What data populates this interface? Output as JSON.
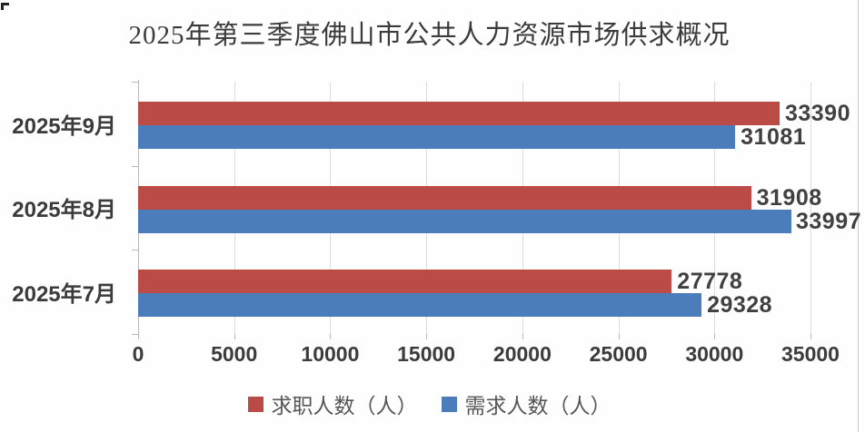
{
  "chart_data": {
    "type": "bar",
    "orientation": "horizontal",
    "title": "2025年第三季度佛山市公共人力资源市场供求概况",
    "categories": [
      "2025年9月",
      "2025年8月",
      "2025年7月"
    ],
    "series": [
      {
        "name": "求职人数（人）",
        "color": "#bb4b47",
        "values": [
          33390,
          31908,
          27778
        ]
      },
      {
        "name": "需求人数（人）",
        "color": "#4a7db9",
        "values": [
          31081,
          33997,
          29328
        ]
      }
    ],
    "xlim": [
      0,
      35000
    ],
    "xticks": [
      0,
      5000,
      10000,
      15000,
      20000,
      25000,
      30000,
      35000
    ],
    "grid": true,
    "gridline_color": "#dcdcdc",
    "axis_color": "#b9b9b9",
    "text_color": "#3b3b3b",
    "data_label_color": "#404040",
    "legend_position": "bottom",
    "data_labels": true
  }
}
